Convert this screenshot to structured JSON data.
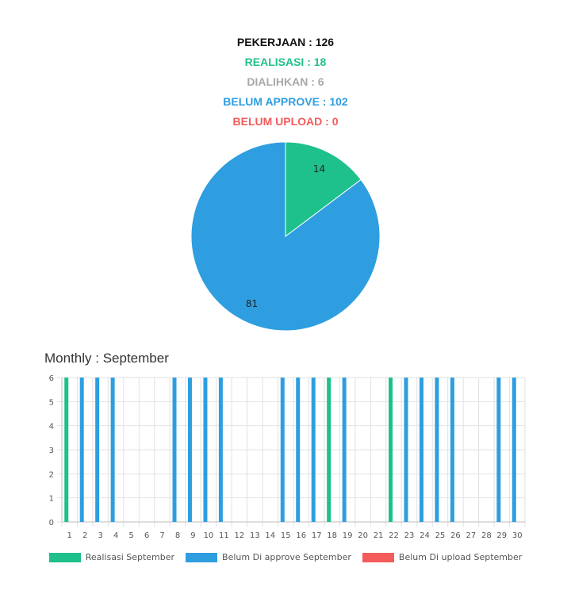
{
  "summary": {
    "pekerjaan": "PEKERJAAN : 126",
    "realisasi": "REALISASI : 18",
    "dialihkan": "DIALIHKAN : 6",
    "belum_approve": "BELUM APPROVE : 102",
    "belum_upload": "BELUM UPLOAD : 0"
  },
  "monthly_title": "Monthly : September",
  "colors": {
    "realisasi": "#1ec08c",
    "approve": "#2e9ee0",
    "upload": "#f45b5b"
  },
  "chart_data": [
    {
      "type": "pie",
      "slices": [
        {
          "name": "Realisasi",
          "value": 14,
          "label": "14"
        },
        {
          "name": "Belum Approve",
          "value": 81,
          "label": "81"
        }
      ]
    },
    {
      "type": "bar",
      "categories": [
        "1",
        "2",
        "3",
        "4",
        "5",
        "6",
        "7",
        "8",
        "9",
        "10",
        "11",
        "12",
        "13",
        "14",
        "15",
        "16",
        "17",
        "18",
        "19",
        "20",
        "21",
        "22",
        "23",
        "24",
        "25",
        "26",
        "27",
        "28",
        "29",
        "30"
      ],
      "ylim": [
        0,
        6
      ],
      "yticks": [
        "0",
        "1",
        "2",
        "3",
        "4",
        "5",
        "6"
      ],
      "series": [
        {
          "name": "Realisasi September",
          "values": [
            6,
            0,
            0,
            0,
            0,
            0,
            0,
            0,
            0,
            0,
            0,
            0,
            0,
            0,
            0,
            0,
            0,
            6,
            0,
            0,
            0,
            6,
            0,
            0,
            0,
            0,
            0,
            0,
            0,
            0
          ]
        },
        {
          "name": "Belum Di approve September",
          "values": [
            0,
            6,
            6,
            6,
            0,
            0,
            0,
            6,
            6,
            6,
            6,
            0,
            0,
            0,
            6,
            6,
            6,
            0,
            6,
            0,
            0,
            0,
            6,
            6,
            6,
            6,
            0,
            0,
            6,
            6
          ]
        },
        {
          "name": "Belum Di upload September",
          "values": [
            0,
            0,
            0,
            0,
            0,
            0,
            0,
            0,
            0,
            0,
            0,
            0,
            0,
            0,
            0,
            0,
            0,
            0,
            0,
            0,
            0,
            0,
            0,
            0,
            0,
            0,
            0,
            0,
            0,
            0
          ]
        }
      ]
    }
  ]
}
